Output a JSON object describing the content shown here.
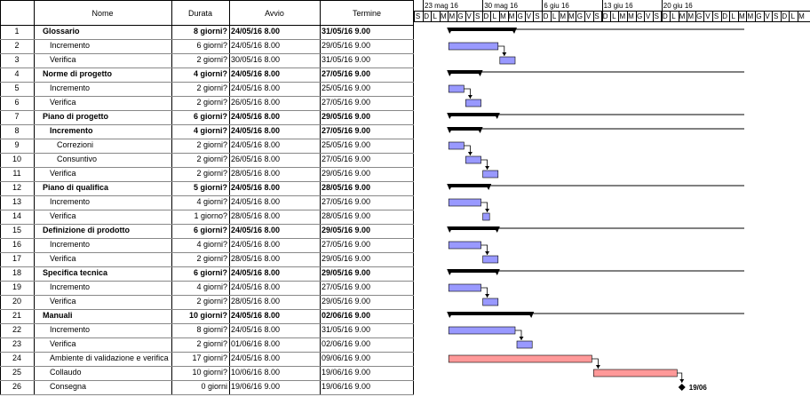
{
  "columns": {
    "num": "",
    "name": "Nome",
    "duration": "Durata",
    "start": "Avvio",
    "end": "Termine"
  },
  "weeks": [
    "23 mag 16",
    "30 mag 16",
    "6 giu 16",
    "13 giu 16",
    "20 giu 16"
  ],
  "week_days": [
    "S",
    "D",
    "L",
    "M",
    "M",
    "G",
    "V"
  ],
  "tasks": [
    {
      "id": "1",
      "name": "Glossario",
      "duration": "8 giorni?",
      "start": "24/05/16 8.00",
      "end": "31/05/16 9.00",
      "summary": true,
      "indent": 0
    },
    {
      "id": "2",
      "name": "Incremento",
      "duration": "6 giorni?",
      "start": "24/05/16 8.00",
      "end": "29/05/16 9.00",
      "summary": false,
      "indent": 1
    },
    {
      "id": "3",
      "name": "Verifica",
      "duration": "2 giorni?",
      "start": "30/05/16 8.00",
      "end": "31/05/16 9.00",
      "summary": false,
      "indent": 1
    },
    {
      "id": "4",
      "name": "Norme di progetto",
      "duration": "4 giorni?",
      "start": "24/05/16 8.00",
      "end": "27/05/16 9.00",
      "summary": true,
      "indent": 0
    },
    {
      "id": "5",
      "name": "Incremento",
      "duration": "2 giorni?",
      "start": "24/05/16 8.00",
      "end": "25/05/16 9.00",
      "summary": false,
      "indent": 1
    },
    {
      "id": "6",
      "name": "Verifica",
      "duration": "2 giorni?",
      "start": "26/05/16 8.00",
      "end": "27/05/16 9.00",
      "summary": false,
      "indent": 1
    },
    {
      "id": "7",
      "name": "Piano di progetto",
      "duration": "6 giorni?",
      "start": "24/05/16 8.00",
      "end": "29/05/16 9.00",
      "summary": true,
      "indent": 0
    },
    {
      "id": "8",
      "name": "Incremento",
      "duration": "4 giorni?",
      "start": "24/05/16 8.00",
      "end": "27/05/16 9.00",
      "summary": true,
      "indent": 1
    },
    {
      "id": "9",
      "name": "Correzioni",
      "duration": "2 giorni?",
      "start": "24/05/16 8.00",
      "end": "25/05/16 9.00",
      "summary": false,
      "indent": 2
    },
    {
      "id": "10",
      "name": "Consuntivo",
      "duration": "2 giorni?",
      "start": "26/05/16 8.00",
      "end": "27/05/16 9.00",
      "summary": false,
      "indent": 2
    },
    {
      "id": "11",
      "name": "Verifica",
      "duration": "2 giorni?",
      "start": "28/05/16 8.00",
      "end": "29/05/16 9.00",
      "summary": false,
      "indent": 1
    },
    {
      "id": "12",
      "name": "Piano di qualifica",
      "duration": "5 giorni?",
      "start": "24/05/16 8.00",
      "end": "28/05/16 9.00",
      "summary": true,
      "indent": 0
    },
    {
      "id": "13",
      "name": "Incremento",
      "duration": "4 giorni?",
      "start": "24/05/16 8.00",
      "end": "27/05/16 9.00",
      "summary": false,
      "indent": 1
    },
    {
      "id": "14",
      "name": "Verifica",
      "duration": "1 giorno?",
      "start": "28/05/16 8.00",
      "end": "28/05/16 9.00",
      "summary": false,
      "indent": 1
    },
    {
      "id": "15",
      "name": "Definizione di prodotto",
      "duration": "6 giorni?",
      "start": "24/05/16 8.00",
      "end": "29/05/16 9.00",
      "summary": true,
      "indent": 0
    },
    {
      "id": "16",
      "name": "Incremento",
      "duration": "4 giorni?",
      "start": "24/05/16 8.00",
      "end": "27/05/16 9.00",
      "summary": false,
      "indent": 1
    },
    {
      "id": "17",
      "name": "Verifica",
      "duration": "2 giorni?",
      "start": "28/05/16 8.00",
      "end": "29/05/16 9.00",
      "summary": false,
      "indent": 1
    },
    {
      "id": "18",
      "name": "Specifica tecnica",
      "duration": "6 giorni?",
      "start": "24/05/16 8.00",
      "end": "29/05/16 9.00",
      "summary": true,
      "indent": 0
    },
    {
      "id": "19",
      "name": "Incremento",
      "duration": "4 giorni?",
      "start": "24/05/16 8.00",
      "end": "27/05/16 9.00",
      "summary": false,
      "indent": 1
    },
    {
      "id": "20",
      "name": "Verifica",
      "duration": "2 giorni?",
      "start": "28/05/16 8.00",
      "end": "29/05/16 9.00",
      "summary": false,
      "indent": 1
    },
    {
      "id": "21",
      "name": "Manuali",
      "duration": "10 giorni?",
      "start": "24/05/16 8.00",
      "end": "02/06/16 9.00",
      "summary": true,
      "indent": 0
    },
    {
      "id": "22",
      "name": "Incremento",
      "duration": "8 giorni?",
      "start": "24/05/16 8.00",
      "end": "31/05/16 9.00",
      "summary": false,
      "indent": 1
    },
    {
      "id": "23",
      "name": "Verifica",
      "duration": "2 giorni?",
      "start": "01/06/16 8.00",
      "end": "02/06/16 9.00",
      "summary": false,
      "indent": 1
    },
    {
      "id": "24",
      "name": "Ambiente di validazione e verifica",
      "duration": "17 giorni?",
      "start": "24/05/16 8.00",
      "end": "09/06/16 9.00",
      "summary": false,
      "indent": 1
    },
    {
      "id": "25",
      "name": "Collaudo",
      "duration": "10 giorni?",
      "start": "10/06/16 8.00",
      "end": "19/06/16 9.00",
      "summary": false,
      "indent": 1
    },
    {
      "id": "26",
      "name": "Consegna",
      "duration": "0 giorni",
      "start": "19/06/16 9.00",
      "end": "19/06/16 9.00",
      "summary": false,
      "indent": 1
    }
  ],
  "gantt": {
    "bars": [
      {
        "row": 1,
        "kind": "summary",
        "start_day": 2,
        "days": 8
      },
      {
        "row": 2,
        "kind": "task",
        "start_day": 2,
        "days": 6
      },
      {
        "row": 3,
        "kind": "task",
        "start_day": 8,
        "days": 2
      },
      {
        "row": 4,
        "kind": "summary",
        "start_day": 2,
        "days": 4
      },
      {
        "row": 5,
        "kind": "task",
        "start_day": 2,
        "days": 2
      },
      {
        "row": 6,
        "kind": "task",
        "start_day": 4,
        "days": 2
      },
      {
        "row": 7,
        "kind": "summary",
        "start_day": 2,
        "days": 6
      },
      {
        "row": 8,
        "kind": "summary",
        "start_day": 2,
        "days": 4
      },
      {
        "row": 9,
        "kind": "task",
        "start_day": 2,
        "days": 2
      },
      {
        "row": 10,
        "kind": "task",
        "start_day": 4,
        "days": 2
      },
      {
        "row": 11,
        "kind": "task",
        "start_day": 6,
        "days": 2
      },
      {
        "row": 12,
        "kind": "summary",
        "start_day": 2,
        "days": 5
      },
      {
        "row": 13,
        "kind": "task",
        "start_day": 2,
        "days": 4
      },
      {
        "row": 14,
        "kind": "task",
        "start_day": 6,
        "days": 1
      },
      {
        "row": 15,
        "kind": "summary",
        "start_day": 2,
        "days": 6
      },
      {
        "row": 16,
        "kind": "task",
        "start_day": 2,
        "days": 4
      },
      {
        "row": 17,
        "kind": "task",
        "start_day": 6,
        "days": 2
      },
      {
        "row": 18,
        "kind": "summary",
        "start_day": 2,
        "days": 6
      },
      {
        "row": 19,
        "kind": "task",
        "start_day": 2,
        "days": 4
      },
      {
        "row": 20,
        "kind": "task",
        "start_day": 6,
        "days": 2
      },
      {
        "row": 21,
        "kind": "summary",
        "start_day": 2,
        "days": 10
      },
      {
        "row": 22,
        "kind": "task",
        "start_day": 2,
        "days": 8
      },
      {
        "row": 23,
        "kind": "task",
        "start_day": 10,
        "days": 2
      },
      {
        "row": 24,
        "kind": "critical",
        "start_day": 2,
        "days": 17
      },
      {
        "row": 25,
        "kind": "critical",
        "start_day": 19,
        "days": 10
      },
      {
        "row": 26,
        "kind": "milestone",
        "start_day": 28.1,
        "days": 0
      }
    ],
    "milestone_label": "19/06",
    "colors": {
      "task": "#9999ff",
      "critical": "#ff9999",
      "summary": "#000000"
    }
  }
}
